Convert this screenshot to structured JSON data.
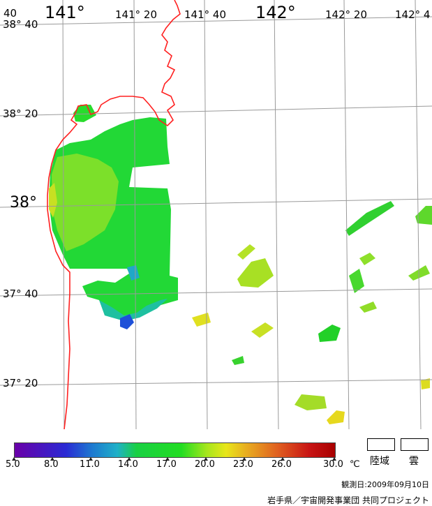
{
  "map": {
    "lon_labels": [
      "141°",
      "141° 20",
      "141° 40",
      "142°",
      "142° 20",
      "142° 4"
    ],
    "lat_labels": [
      "38° 40",
      "38° 20",
      "38°",
      "37° 40",
      "37° 20"
    ],
    "corner_label": "40"
  },
  "colorbar": {
    "ticks": [
      "5.0",
      "8.0",
      "11.0",
      "14.0",
      "17.0",
      "20.0",
      "23.0",
      "26.0",
      "30.0"
    ],
    "unit": "℃",
    "min": 5.0,
    "max": 30.0
  },
  "legend": {
    "land_label": "陸域",
    "cloud_label": "雲"
  },
  "observation_date": "観測日:2009年09月10日",
  "credit": "岩手県／宇宙開発事業団 共同プロジェクト",
  "colors": {
    "coastline": "#ff2020",
    "grid": "#9a9a9a"
  }
}
